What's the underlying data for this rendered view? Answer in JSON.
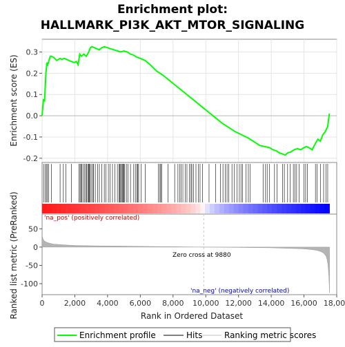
{
  "title_line1": "Enrichment plot:",
  "title_line2": "HALLMARK_PI3K_AKT_MTOR_SIGNALING",
  "chart_data": {
    "type": "line",
    "title": "Enrichment plot: HALLMARK_PI3K_AKT_MTOR_SIGNALING",
    "x_range": [
      0,
      18000
    ],
    "x_ticks": [
      "0",
      "2,000",
      "4,000",
      "6,000",
      "8,000",
      "10,000",
      "12,000",
      "14,000",
      "16,000",
      "18,000"
    ],
    "xlabel": "Rank in Ordered Dataset",
    "top_panel": {
      "ylabel": "Enrichment score (ES)",
      "ylim": [
        -0.22,
        0.36
      ],
      "y_ticks": [
        -0.2,
        -0.1,
        0.0,
        0.1,
        0.2,
        0.3
      ],
      "y_tick_labels": [
        "-0.2",
        "-0.1",
        "0.0",
        "0.1",
        "0.2",
        "0.3"
      ],
      "series": [
        {
          "name": "Enrichment profile",
          "color": "#00ff00",
          "x": [
            0,
            80,
            150,
            230,
            300,
            350,
            420,
            500,
            560,
            700,
            900,
            1100,
            1200,
            1350,
            1500,
            1650,
            1800,
            1950,
            2100,
            2200,
            2300,
            2400,
            2550,
            2700,
            2850,
            2950,
            3050,
            3200,
            3350,
            3500,
            3650,
            3800,
            4000,
            4200,
            4400,
            4600,
            4800,
            5000,
            5200,
            5400,
            5600,
            5800,
            6000,
            6300,
            6600,
            7000,
            7400,
            7800,
            8200,
            8600,
            9000,
            9400,
            9800,
            10200,
            10600,
            11000,
            11400,
            11800,
            12200,
            12600,
            13000,
            13300,
            13600,
            13900,
            14100,
            14300,
            14500,
            14700,
            14850,
            15000,
            15200,
            15400,
            15600,
            15800,
            16000,
            16150,
            16300,
            16500,
            16700,
            16850,
            17000,
            17150,
            17300,
            17450,
            17550
          ],
          "y": [
            0.0,
            0.075,
            0.07,
            0.2,
            0.25,
            0.24,
            0.26,
            0.28,
            0.28,
            0.275,
            0.26,
            0.27,
            0.265,
            0.27,
            0.265,
            0.26,
            0.255,
            0.25,
            0.255,
            0.24,
            0.29,
            0.28,
            0.29,
            0.28,
            0.3,
            0.32,
            0.325,
            0.32,
            0.315,
            0.31,
            0.32,
            0.325,
            0.32,
            0.315,
            0.31,
            0.305,
            0.3,
            0.305,
            0.3,
            0.29,
            0.285,
            0.275,
            0.27,
            0.26,
            0.24,
            0.21,
            0.19,
            0.165,
            0.14,
            0.115,
            0.09,
            0.065,
            0.04,
            0.015,
            -0.01,
            -0.035,
            -0.055,
            -0.075,
            -0.09,
            -0.105,
            -0.125,
            -0.14,
            -0.145,
            -0.15,
            -0.16,
            -0.165,
            -0.175,
            -0.18,
            -0.185,
            -0.175,
            -0.17,
            -0.16,
            -0.155,
            -0.16,
            -0.15,
            -0.145,
            -0.15,
            -0.16,
            -0.13,
            -0.11,
            -0.12,
            -0.09,
            -0.075,
            -0.05,
            0.01
          ]
        }
      ]
    },
    "hits": [
      90,
      180,
      260,
      330,
      390,
      560,
      1100,
      1300,
      1450,
      1800,
      2250,
      2320,
      2370,
      2420,
      2500,
      2600,
      2680,
      2730,
      2800,
      2850,
      2880,
      2930,
      3000,
      3100,
      3150,
      3250,
      3400,
      3500,
      3650,
      3800,
      3900,
      4050,
      4150,
      4300,
      4450,
      4600,
      4700,
      4750,
      4800,
      4850,
      4900,
      4950,
      5000,
      5050,
      5150,
      5250,
      5400,
      5600,
      5700,
      5800,
      5850,
      5900,
      6050,
      6300,
      7100,
      7200,
      7250,
      7300,
      7700,
      8100,
      8300,
      8400,
      8500,
      8600,
      8750,
      8850,
      9000,
      9100,
      9150,
      9250,
      9400,
      9550,
      9650,
      9800,
      10200,
      10600,
      10900,
      11050,
      11200,
      11300,
      11400,
      11600,
      11750,
      11900,
      12050,
      12150,
      12250,
      12450,
      12600,
      12700,
      13500,
      13650,
      13750,
      13900,
      14200,
      14350,
      14700,
      14800,
      15000,
      15150,
      15350,
      15450,
      15550,
      15700,
      16000,
      16100,
      16200,
      16700,
      16800,
      17000,
      17200,
      17350,
      17450
    ],
    "middle_panel": {
      "ylabel": "Ranked list metric (PreRanked)",
      "ylim": [
        -130,
        90
      ],
      "y_ticks": [
        50,
        0,
        -50,
        -100
      ],
      "y_tick_labels": [
        "50",
        "0",
        "-50",
        "-100"
      ],
      "profile_x": [
        0,
        20,
        60,
        120,
        200,
        350,
        500,
        700,
        1000,
        1500,
        2000,
        3000,
        4000,
        5000,
        6000,
        7000,
        8000,
        9000,
        9880,
        11000,
        12000,
        13000,
        14000,
        14800,
        15500,
        16000,
        16500,
        16800,
        17000,
        17150,
        17250,
        17350,
        17420,
        17470,
        17520,
        17560
      ],
      "profile_y": [
        35,
        28,
        22,
        18,
        15,
        12,
        10,
        8,
        7,
        5.5,
        4.5,
        3.5,
        3,
        2.5,
        2,
        1.5,
        1,
        0.5,
        0,
        -0.5,
        -1,
        -1.5,
        -2,
        -3,
        -4,
        -5,
        -7,
        -9,
        -12,
        -15,
        -19,
        -25,
        -35,
        -50,
        -80,
        -125
      ]
    },
    "zero_cross_x": 9880,
    "annotations": {
      "zero_cross": "Zero cross at 9880",
      "pos_label": "'na_pos' (positively correlated)",
      "neg_label": "'na_neg' (negatively correlated)"
    },
    "legend": {
      "placement": "bottom",
      "items": [
        {
          "label": "Enrichment profile",
          "color": "#00ff00"
        },
        {
          "label": "Hits",
          "color": "#000000"
        },
        {
          "label": "Ranking metric scores",
          "color": "#c0c0c0"
        }
      ]
    },
    "colors": {
      "positive": "#ff0000",
      "negative": "#0000ff",
      "curve": "#00ff00",
      "metric_fill": "#b4b4b4",
      "pos_text": "#cc0000",
      "neg_text": "#0000cc"
    }
  }
}
